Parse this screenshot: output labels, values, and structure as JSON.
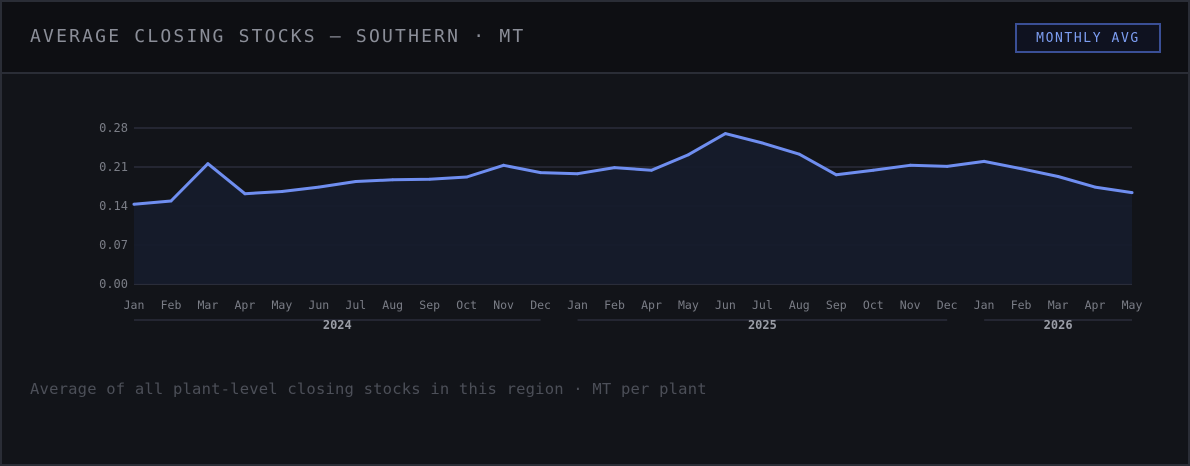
{
  "header": {
    "title": "AVERAGE CLOSING STOCKS — SOUTHERN · MT",
    "badge_label": "MONTHLY AVG"
  },
  "footnote": "Average of all plant-level closing stocks in this region · MT per plant",
  "colors": {
    "line": "#6f8ef0",
    "area": "#161b2b",
    "grid": "#2a2d3a",
    "tick": "#7a7d86",
    "year": "#9a9da6"
  },
  "chart_data": {
    "type": "area",
    "title": "AVERAGE CLOSING STOCKS — SOUTHERN · MT",
    "xlabel": "",
    "ylabel": "",
    "ylim": [
      0,
      0.28
    ],
    "yticks": [
      "0.28",
      "0.21",
      "0.14",
      "0.07",
      "0.00"
    ],
    "grid": true,
    "categories": [
      "Jan",
      "Feb",
      "Mar",
      "Apr",
      "May",
      "Jun",
      "Jul",
      "Aug",
      "Sep",
      "Oct",
      "Nov",
      "Dec",
      "Jan",
      "Feb",
      "Apr",
      "May",
      "Jun",
      "Jul",
      "Aug",
      "Sep",
      "Oct",
      "Nov",
      "Dec",
      "Jan",
      "Feb",
      "Mar",
      "Apr",
      "May"
    ],
    "year_groups": [
      {
        "label": "2024",
        "start": 0,
        "end": 11
      },
      {
        "label": "2025",
        "start": 12,
        "end": 22
      },
      {
        "label": "2026",
        "start": 23,
        "end": 27
      }
    ],
    "series": [
      {
        "values": [
          0.143,
          0.149,
          0.216,
          0.162,
          0.166,
          0.174,
          0.184,
          0.187,
          0.188,
          0.192,
          0.213,
          0.2,
          0.198,
          0.209,
          0.204,
          0.232,
          0.27,
          0.253,
          0.233,
          0.196,
          0.204,
          0.213,
          0.211,
          0.22,
          0.207,
          0.193,
          0.174,
          0.164
        ]
      }
    ]
  }
}
